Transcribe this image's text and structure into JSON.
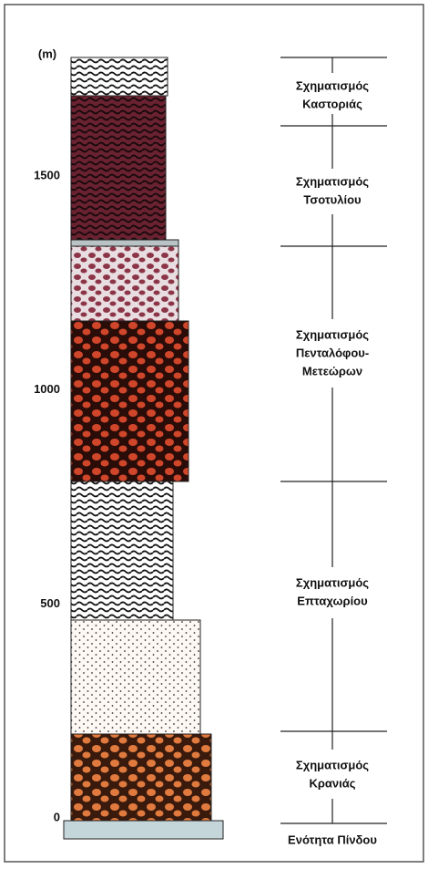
{
  "axis": {
    "unit": "(m)",
    "ticks": [
      0,
      500,
      1000,
      1500
    ]
  },
  "formations": [
    {
      "lines": [
        "Σχηματισμός",
        "Καστοριάς"
      ]
    },
    {
      "lines": [
        "Σχηματισμός",
        "Τσοτυλίου"
      ]
    },
    {
      "lines": [
        "Σχηματισμός",
        "Πενταλόφου-",
        "Μετεώρων"
      ]
    },
    {
      "lines": [
        "Σχηματισμός",
        "Επταχωρίου"
      ]
    },
    {
      "lines": [
        "Σχηματισμός",
        "Κρανιάς"
      ]
    },
    {
      "lines": [
        "Ενότητα Πίνδου"
      ]
    }
  ]
}
